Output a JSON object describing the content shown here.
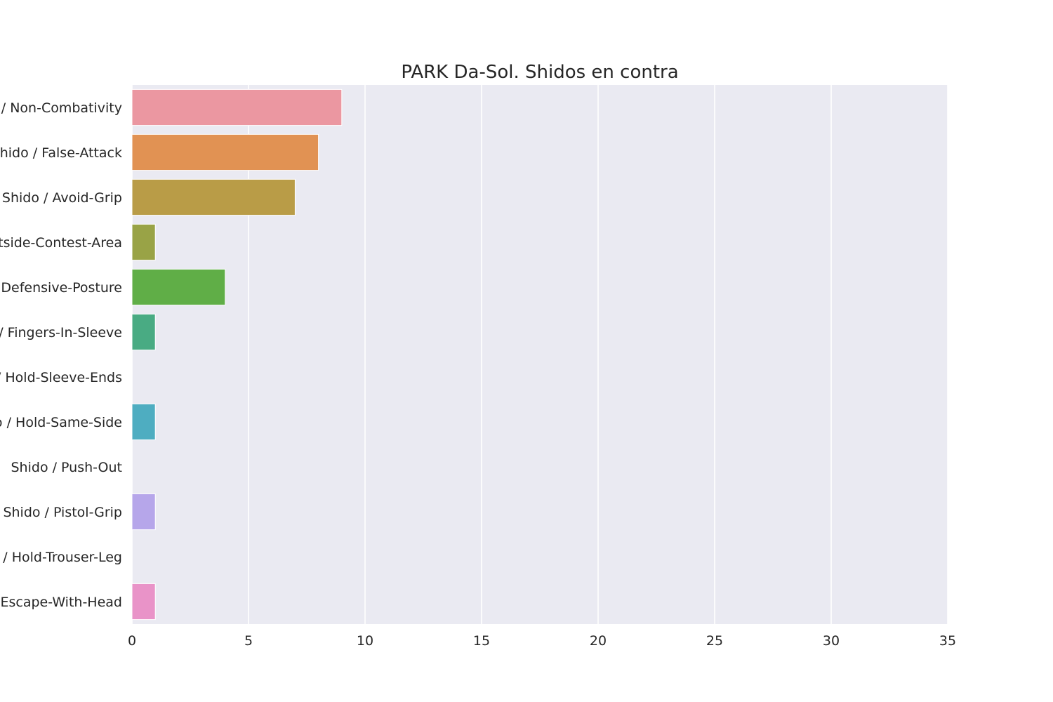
{
  "chart_data": {
    "type": "bar",
    "orientation": "horizontal",
    "title": "PARK Da-Sol. Shidos en contra",
    "xlabel": "",
    "ylabel": "",
    "xlim": [
      0,
      35
    ],
    "xticks": [
      0,
      5,
      10,
      15,
      20,
      25,
      30,
      35
    ],
    "grid": true,
    "background": "#eaeaf2",
    "categories": [
      "Shido / Non-Combativity",
      "Shido / False-Attack",
      "Shido / Avoid-Grip",
      "Shido / Outside-Contest-Area",
      "Shido / Defensive-Posture",
      "Shido / Fingers-In-Sleeve",
      "Shido / Hold-Sleeve-Ends",
      "Shido / Hold-Same-Side",
      "Shido / Push-Out",
      "Shido / Pistol-Grip",
      "Shido / Hold-Trouser-Leg",
      "Shido / Escape-With-Head"
    ],
    "values": [
      9,
      8,
      7,
      1,
      4,
      1,
      0,
      1,
      0,
      1,
      0,
      1
    ],
    "colors": [
      "#eb97a1",
      "#e19253",
      "#b99c47",
      "#99a346",
      "#60ae47",
      "#49ab83",
      "#4aa89f",
      "#4eadc1",
      "#89a6e8",
      "#b6a6ea",
      "#dd95e6",
      "#e993c8"
    ]
  }
}
